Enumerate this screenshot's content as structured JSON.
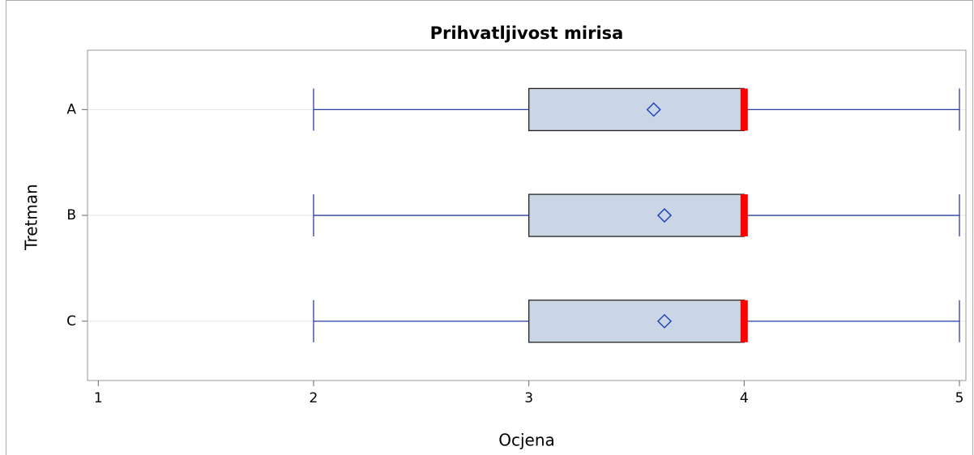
{
  "chart_data": {
    "type": "box",
    "title": "Prihvatljivost mirisa",
    "x_label": "Ocjena",
    "y_label": "Tretman",
    "categories": [
      "A",
      "B",
      "C"
    ],
    "boxes": [
      {
        "min": 2,
        "q1": 3,
        "median": 4,
        "q3": 4,
        "max": 5,
        "mean": 3.58
      },
      {
        "min": 2,
        "q1": 3,
        "median": 4,
        "q3": 4,
        "max": 5,
        "mean": 3.63
      },
      {
        "min": 2,
        "q1": 3,
        "median": 4,
        "q3": 4,
        "max": 5,
        "mean": 3.63
      }
    ],
    "xlim": [
      0.95,
      5.03
    ],
    "xticks": [
      1,
      2,
      3,
      4,
      5
    ],
    "grid": true,
    "box_color": "#cad5e6",
    "whisker_color": "#2a3d9e",
    "median_color": "#ff0000",
    "mean_color": "#2046b8"
  }
}
